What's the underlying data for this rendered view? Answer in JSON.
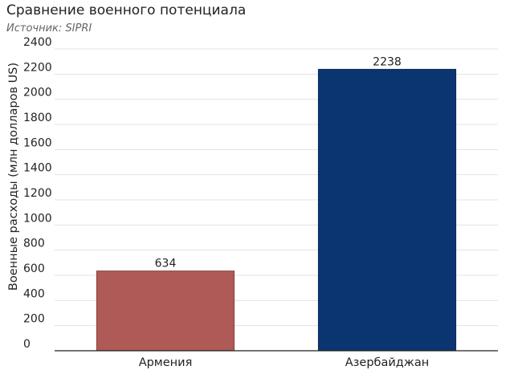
{
  "chart_data": {
    "type": "bar",
    "title": "Сравнение военного потенциала",
    "subtitle": "Источник: SIPRI",
    "xlabel": "",
    "ylabel": "Военные расходы (млн долларов US)",
    "categories": [
      "Армения",
      "Азербайджан"
    ],
    "values": [
      634,
      2238
    ],
    "colors": [
      "#b05a57",
      "#0b3570"
    ],
    "ylim": [
      0,
      2400
    ],
    "yticks": [
      0,
      200,
      400,
      600,
      800,
      1000,
      1200,
      1400,
      1600,
      1800,
      2000,
      2200,
      2400
    ],
    "grid": true,
    "data_labels": [
      "634",
      "2238"
    ]
  }
}
